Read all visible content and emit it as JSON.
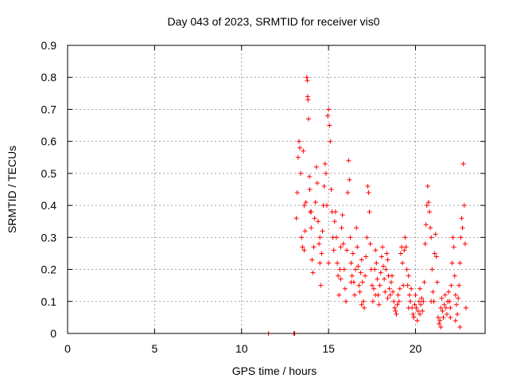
{
  "chart_data": {
    "type": "scatter",
    "title": "Day 043 of 2023, SRMTID for receiver vis0",
    "xlabel": "GPS time / hours",
    "ylabel": "SRMTID / TECUs",
    "xlim": [
      0,
      24
    ],
    "ylim": [
      0,
      0.9
    ],
    "xticks": [
      "0",
      "5",
      "10",
      "15",
      "20"
    ],
    "yticks": [
      "0",
      "0.1",
      "0.2",
      "0.3",
      "0.4",
      "0.5",
      "0.6",
      "0.7",
      "0.8",
      "0.9"
    ],
    "grid": true,
    "marker": "+",
    "color": "#ff0000",
    "series": [
      {
        "name": "vis0",
        "points": [
          [
            11.55,
            0.0
          ],
          [
            13.0,
            0.0
          ],
          [
            13.05,
            0.0
          ],
          [
            13.15,
            0.36
          ],
          [
            13.2,
            0.44
          ],
          [
            13.25,
            0.55
          ],
          [
            13.3,
            0.6
          ],
          [
            13.35,
            0.58
          ],
          [
            13.4,
            0.5
          ],
          [
            13.45,
            0.3
          ],
          [
            13.5,
            0.27
          ],
          [
            13.55,
            0.57
          ],
          [
            13.6,
            0.4
          ],
          [
            13.65,
            0.32
          ],
          [
            13.7,
            0.41
          ],
          [
            13.75,
            0.8
          ],
          [
            13.78,
            0.79
          ],
          [
            13.8,
            0.74
          ],
          [
            13.82,
            0.73
          ],
          [
            13.85,
            0.67
          ],
          [
            13.9,
            0.49
          ],
          [
            13.92,
            0.45
          ],
          [
            13.95,
            0.38
          ],
          [
            14.0,
            0.33
          ],
          [
            14.05,
            0.23
          ],
          [
            14.1,
            0.19
          ],
          [
            14.15,
            0.27
          ],
          [
            14.2,
            0.36
          ],
          [
            14.25,
            0.41
          ],
          [
            14.3,
            0.52
          ],
          [
            14.35,
            0.47
          ],
          [
            14.4,
            0.35
          ],
          [
            14.45,
            0.28
          ],
          [
            14.5,
            0.22
          ],
          [
            14.55,
            0.15
          ],
          [
            14.6,
            0.25
          ],
          [
            14.65,
            0.32
          ],
          [
            14.7,
            0.4
          ],
          [
            14.75,
            0.46
          ],
          [
            14.8,
            0.53
          ],
          [
            14.85,
            0.5
          ],
          [
            14.9,
            0.4
          ],
          [
            14.95,
            0.68
          ],
          [
            15.0,
            0.7
          ],
          [
            15.05,
            0.65
          ],
          [
            15.1,
            0.6
          ],
          [
            15.15,
            0.45
          ],
          [
            15.2,
            0.38
          ],
          [
            15.25,
            0.3
          ],
          [
            15.3,
            0.26
          ],
          [
            15.35,
            0.35
          ],
          [
            15.4,
            0.38
          ],
          [
            15.45,
            0.3
          ],
          [
            15.5,
            0.22
          ],
          [
            15.55,
            0.18
          ],
          [
            15.6,
            0.12
          ],
          [
            15.65,
            0.2
          ],
          [
            15.7,
            0.27
          ],
          [
            15.75,
            0.33
          ],
          [
            15.8,
            0.37
          ],
          [
            15.85,
            0.28
          ],
          [
            15.9,
            0.2
          ],
          [
            15.95,
            0.14
          ],
          [
            16.0,
            0.1
          ],
          [
            16.05,
            0.26
          ],
          [
            16.1,
            0.44
          ],
          [
            16.15,
            0.54
          ],
          [
            16.2,
            0.48
          ],
          [
            16.25,
            0.3
          ],
          [
            16.3,
            0.22
          ],
          [
            16.35,
            0.18
          ],
          [
            16.4,
            0.25
          ],
          [
            16.45,
            0.16
          ],
          [
            16.5,
            0.12
          ],
          [
            16.55,
            0.2
          ],
          [
            16.6,
            0.33
          ],
          [
            16.65,
            0.27
          ],
          [
            16.7,
            0.21
          ],
          [
            16.75,
            0.15
          ],
          [
            16.8,
            0.13
          ],
          [
            16.85,
            0.19
          ],
          [
            16.9,
            0.23
          ],
          [
            16.95,
            0.16
          ],
          [
            17.0,
            0.1
          ],
          [
            17.05,
            0.08
          ],
          [
            17.1,
            0.18
          ],
          [
            17.15,
            0.24
          ],
          [
            17.2,
            0.3
          ],
          [
            17.25,
            0.46
          ],
          [
            17.3,
            0.44
          ],
          [
            17.35,
            0.38
          ],
          [
            17.4,
            0.28
          ],
          [
            17.45,
            0.2
          ],
          [
            17.5,
            0.15
          ],
          [
            17.55,
            0.1
          ],
          [
            17.6,
            0.14
          ],
          [
            17.65,
            0.2
          ],
          [
            17.7,
            0.26
          ],
          [
            17.75,
            0.22
          ],
          [
            17.8,
            0.17
          ],
          [
            17.85,
            0.12
          ],
          [
            17.9,
            0.09
          ],
          [
            17.95,
            0.15
          ],
          [
            18.0,
            0.19
          ],
          [
            18.05,
            0.24
          ],
          [
            18.1,
            0.27
          ],
          [
            18.15,
            0.21
          ],
          [
            18.2,
            0.17
          ],
          [
            18.25,
            0.13
          ],
          [
            18.3,
            0.2
          ],
          [
            18.35,
            0.25
          ],
          [
            18.4,
            0.23
          ],
          [
            18.45,
            0.18
          ],
          [
            18.5,
            0.14
          ],
          [
            18.55,
            0.12
          ],
          [
            18.6,
            0.16
          ],
          [
            18.65,
            0.18
          ],
          [
            18.7,
            0.13
          ],
          [
            18.75,
            0.1
          ],
          [
            18.8,
            0.08
          ],
          [
            18.85,
            0.07
          ],
          [
            18.9,
            0.06
          ],
          [
            18.95,
            0.09
          ],
          [
            19.0,
            0.12
          ],
          [
            19.05,
            0.1
          ],
          [
            19.1,
            0.14
          ],
          [
            19.15,
            0.25
          ],
          [
            19.2,
            0.27
          ],
          [
            19.25,
            0.22
          ],
          [
            19.3,
            0.15
          ],
          [
            19.35,
            0.26
          ],
          [
            19.4,
            0.3
          ],
          [
            19.45,
            0.27
          ],
          [
            19.5,
            0.2
          ],
          [
            19.55,
            0.15
          ],
          [
            19.6,
            0.18
          ],
          [
            19.65,
            0.12
          ],
          [
            19.7,
            0.1
          ],
          [
            19.75,
            0.14
          ],
          [
            19.8,
            0.08
          ],
          [
            19.85,
            0.06
          ],
          [
            19.9,
            0.05
          ],
          [
            19.95,
            0.09
          ],
          [
            20.0,
            0.12
          ],
          [
            20.05,
            0.08
          ],
          [
            20.1,
            0.04
          ],
          [
            20.15,
            0.07
          ],
          [
            20.2,
            0.1
          ],
          [
            20.25,
            0.06
          ],
          [
            20.3,
            0.09
          ],
          [
            20.35,
            0.11
          ],
          [
            20.4,
            0.07
          ],
          [
            20.45,
            0.1
          ],
          [
            20.5,
            0.16
          ],
          [
            20.55,
            0.28
          ],
          [
            20.6,
            0.34
          ],
          [
            20.65,
            0.4
          ],
          [
            20.7,
            0.46
          ],
          [
            20.75,
            0.41
          ],
          [
            20.8,
            0.38
          ],
          [
            20.85,
            0.33
          ],
          [
            20.9,
            0.3
          ],
          [
            20.95,
            0.2
          ],
          [
            21.0,
            0.13
          ],
          [
            21.05,
            0.1
          ],
          [
            21.1,
            0.25
          ],
          [
            21.15,
            0.31
          ],
          [
            21.2,
            0.24
          ],
          [
            21.25,
            0.16
          ],
          [
            21.3,
            0.05
          ],
          [
            21.35,
            0.03
          ],
          [
            21.4,
            0.04
          ],
          [
            21.45,
            0.08
          ],
          [
            21.5,
            0.11
          ],
          [
            21.55,
            0.07
          ],
          [
            21.6,
            0.05
          ],
          [
            21.65,
            0.09
          ],
          [
            21.7,
            0.12
          ],
          [
            21.75,
            0.08
          ],
          [
            21.8,
            0.06
          ],
          [
            21.85,
            0.1
          ],
          [
            21.9,
            0.13
          ],
          [
            21.95,
            0.1
          ],
          [
            22.0,
            0.08
          ],
          [
            22.05,
            0.15
          ],
          [
            22.1,
            0.22
          ],
          [
            22.15,
            0.3
          ],
          [
            22.2,
            0.27
          ],
          [
            22.25,
            0.18
          ],
          [
            22.3,
            0.12
          ],
          [
            22.35,
            0.09
          ],
          [
            22.4,
            0.06
          ],
          [
            22.45,
            0.11
          ],
          [
            22.5,
            0.15
          ],
          [
            22.55,
            0.22
          ],
          [
            22.6,
            0.3
          ],
          [
            22.65,
            0.36
          ],
          [
            22.7,
            0.33
          ],
          [
            22.75,
            0.53
          ],
          [
            22.8,
            0.4
          ],
          [
            22.85,
            0.28
          ],
          [
            22.9,
            0.08
          ],
          [
            22.55,
            0.02
          ],
          [
            22.3,
            0.04
          ],
          [
            22.0,
            0.05
          ],
          [
            21.45,
            0.02
          ],
          [
            20.9,
            0.1
          ],
          [
            20.25,
            0.14
          ],
          [
            19.6,
            0.08
          ],
          [
            18.4,
            0.11
          ],
          [
            17.7,
            0.12
          ],
          [
            16.9,
            0.09
          ],
          [
            16.3,
            0.16
          ],
          [
            15.7,
            0.17
          ],
          [
            15.0,
            0.22
          ],
          [
            14.5,
            0.3
          ],
          [
            14.0,
            0.38
          ],
          [
            13.6,
            0.26
          ]
        ]
      }
    ]
  }
}
